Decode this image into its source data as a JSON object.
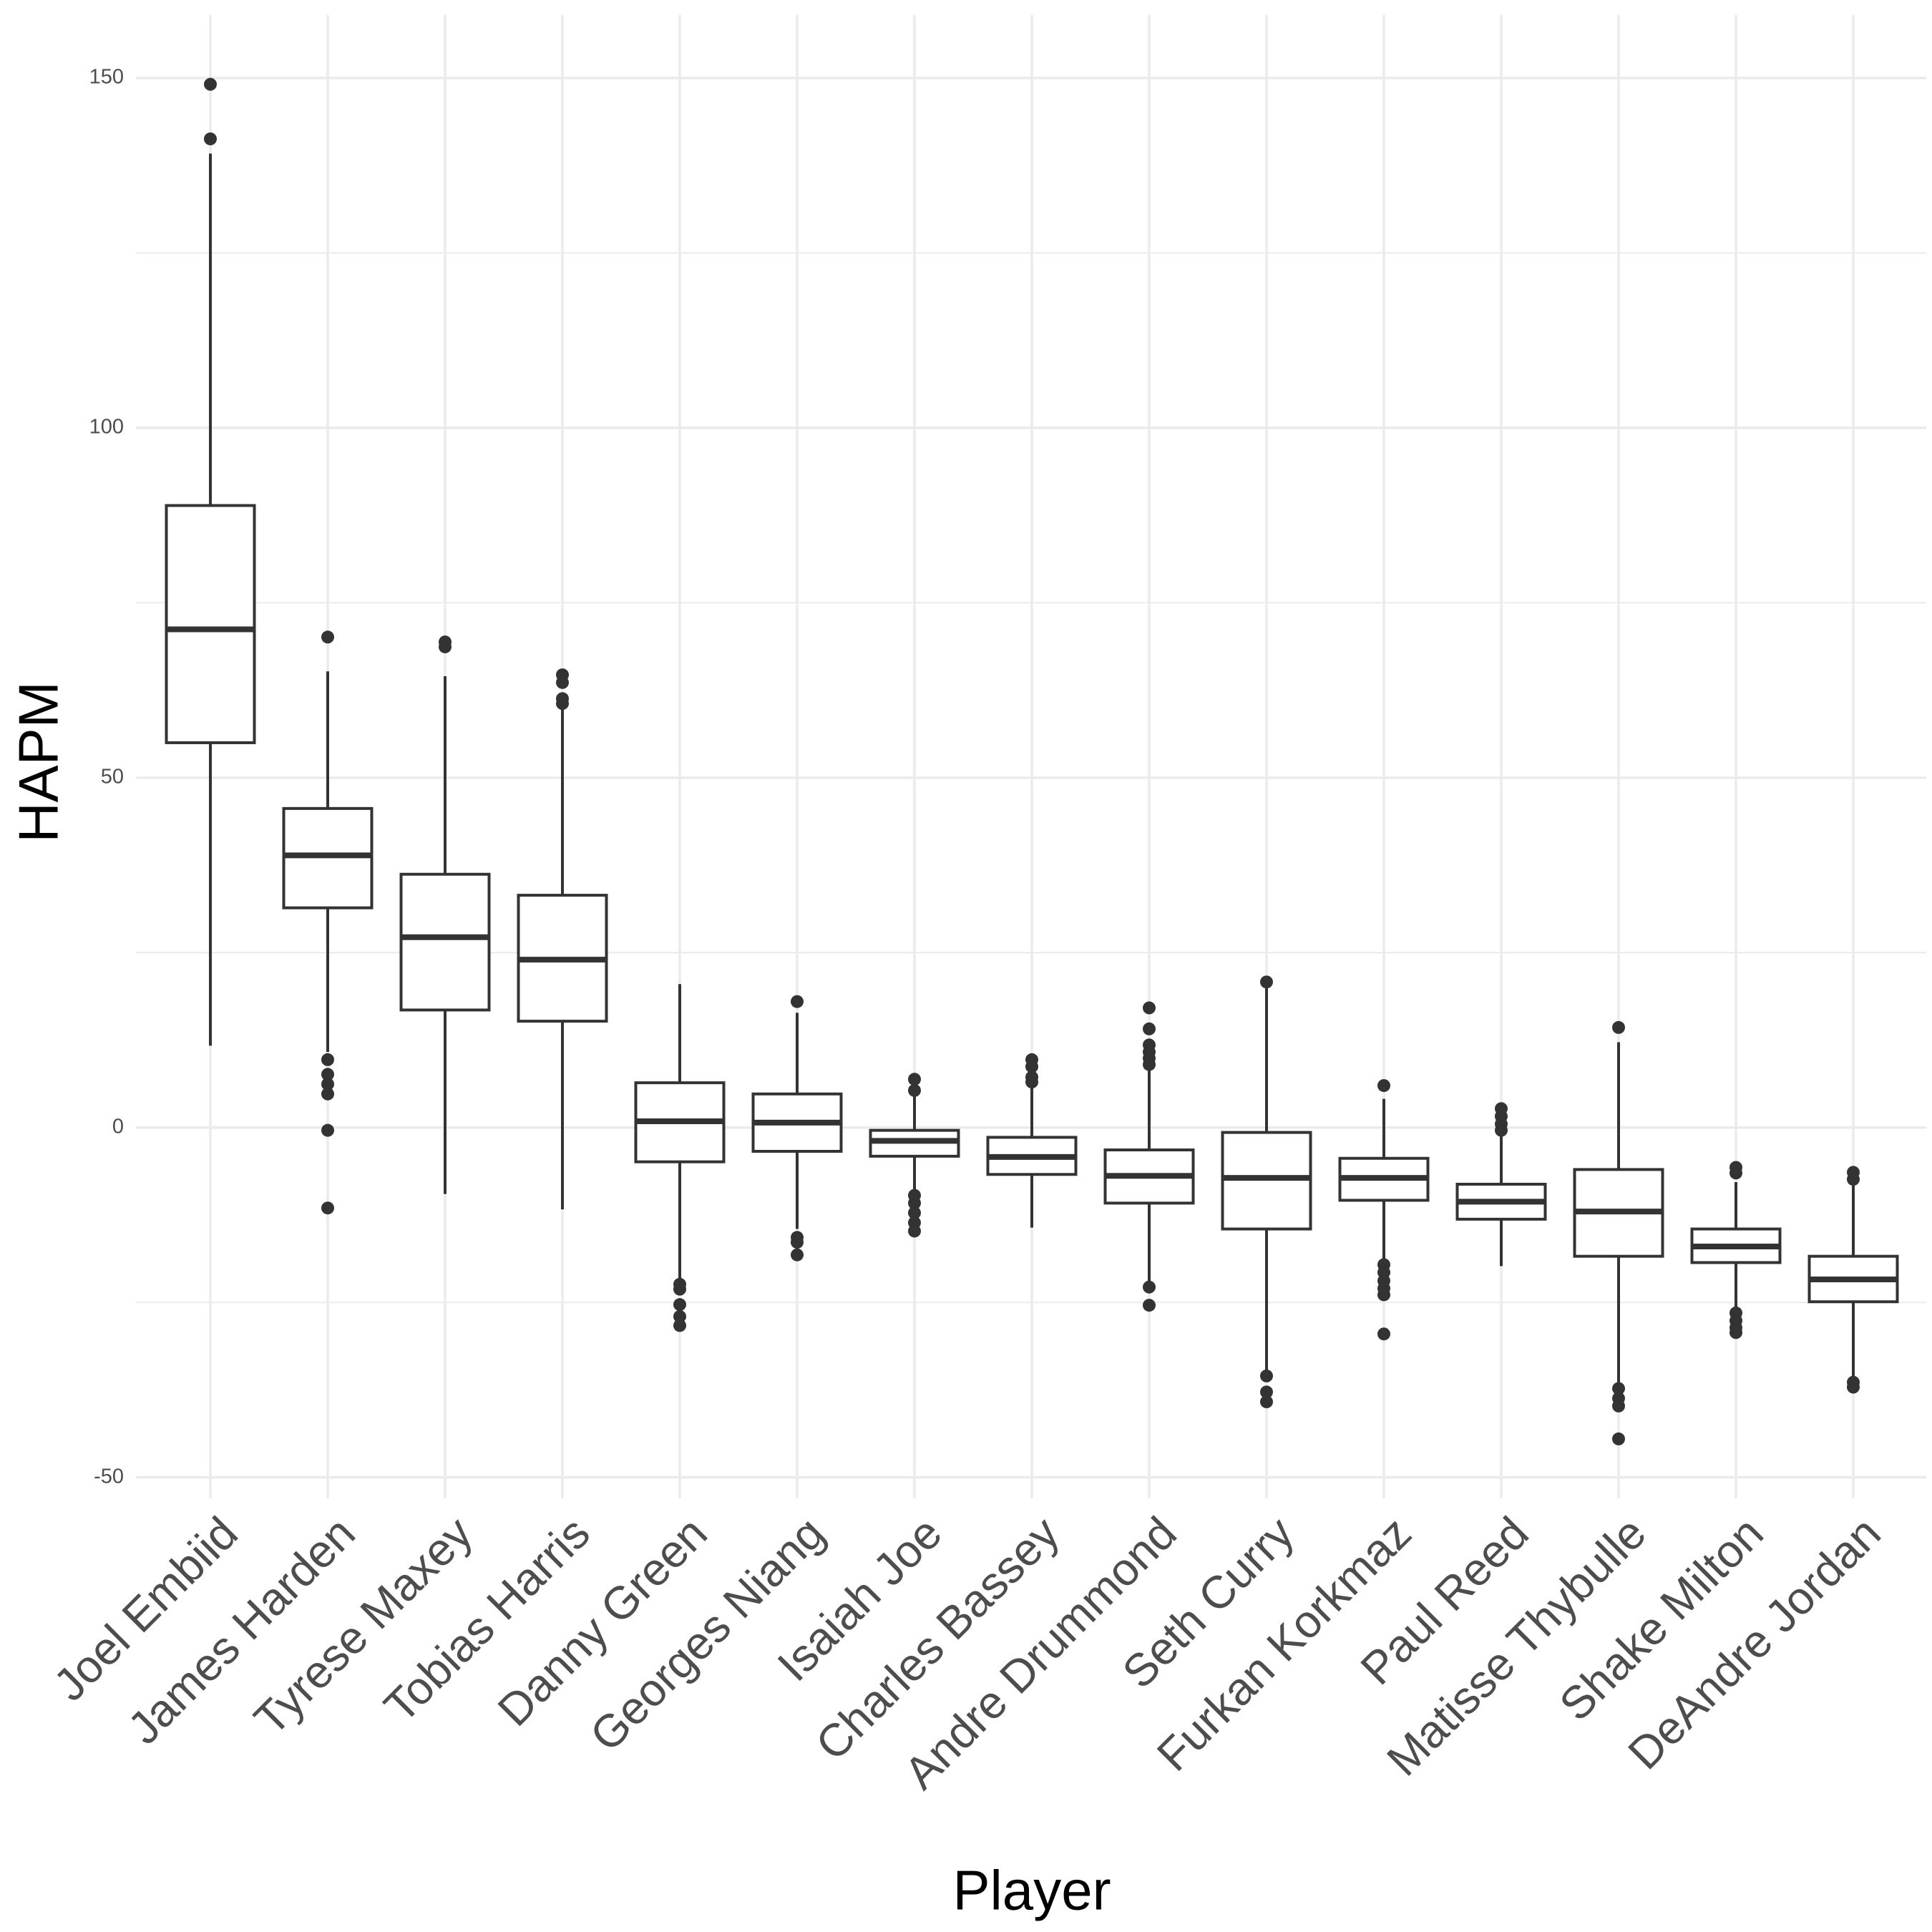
{
  "chart_data": {
    "type": "box",
    "x_label": "Player",
    "y_label": "HAPM",
    "categories": [
      "Joel Embiid",
      "James Harden",
      "Tyrese Maxey",
      "Tobias Harris",
      "Danny Green",
      "Georges Niang",
      "Isaiah Joe",
      "Charles Bassey",
      "Andre Drummond",
      "Seth Curry",
      "Furkan Korkmaz",
      "Paul Reed",
      "Matisse Thybulle",
      "Shake Milton",
      "DeAndre Jordan"
    ],
    "boxes": [
      {
        "low": 11.7,
        "q1": 55,
        "median": 71.2,
        "q3": 88.9,
        "high": 139.2,
        "outliers": [
          149.1,
          141.3
        ]
      },
      {
        "low": 10.8,
        "q1": 31.4,
        "median": 38.9,
        "q3": 45.6,
        "high": 65.2,
        "outliers": [
          70.1,
          9.7,
          7.6,
          6.2,
          4.8,
          -0.4,
          -11.5
        ]
      },
      {
        "low": -9.5,
        "q1": 16.8,
        "median": 27.2,
        "q3": 36.2,
        "high": 64.5,
        "outliers": [
          69.4,
          68.7
        ]
      },
      {
        "low": -11.7,
        "q1": 15.2,
        "median": 24,
        "q3": 33.2,
        "high": 60.2,
        "outliers": [
          64.7,
          63.6,
          61.3,
          60.6
        ]
      },
      {
        "low": -21.9,
        "q1": -4.9,
        "median": 0.9,
        "q3": 6.4,
        "high": 20.5,
        "outliers": [
          -22.4,
          -23.1,
          -25.3,
          -27,
          -28.3
        ]
      },
      {
        "low": -14.5,
        "q1": -3.4,
        "median": 0.7,
        "q3": 4.8,
        "high": 16.4,
        "outliers": [
          18,
          -15.7,
          -16.4,
          -18.2
        ]
      },
      {
        "low": -9,
        "q1": -4.1,
        "median": -1.9,
        "q3": -0.4,
        "high": 4.8,
        "outliers": [
          6.9,
          5.3,
          -9.7,
          -10.8,
          -12.2,
          -13.6,
          -14.8
        ]
      },
      {
        "low": -14.3,
        "q1": -6.7,
        "median": -4.2,
        "q3": -1.4,
        "high": 5.8,
        "outliers": [
          9.7,
          8.7,
          7.2,
          6.5
        ]
      },
      {
        "low": -22.1,
        "q1": -10.8,
        "median": -6.9,
        "q3": -3.2,
        "high": 8.7,
        "outliers": [
          17.1,
          14.1,
          11.8,
          10.8,
          9.9,
          9,
          -22.8,
          -25.4
        ]
      },
      {
        "low": -35.2,
        "q1": -14.5,
        "median": -7.2,
        "q3": -0.7,
        "high": 20.1,
        "outliers": [
          20.8,
          -35.5,
          -37.8,
          -39.2
        ]
      },
      {
        "low": -18.9,
        "q1": -10.4,
        "median": -7.2,
        "q3": -4.4,
        "high": 4.1,
        "outliers": [
          6,
          -19.6,
          -20.7,
          -21.9,
          -23,
          -23.9,
          -29.5
        ]
      },
      {
        "low": -19.8,
        "q1": -13.1,
        "median": -10.6,
        "q3": -8.1,
        "high": -1.2,
        "outliers": [
          2.7,
          1.6,
          0.5,
          -0.4
        ]
      },
      {
        "low": -36.6,
        "q1": -18.4,
        "median": -12,
        "q3": -6,
        "high": 12.2,
        "outliers": [
          14.3,
          -37.3,
          -38.7,
          -39.8,
          -44.5
        ]
      },
      {
        "low": -25.8,
        "q1": -19.3,
        "median": -17,
        "q3": -14.5,
        "high": -7.8,
        "outliers": [
          -5.7,
          -6.5,
          -26.5,
          -27.6,
          -28.6,
          -29.3
        ]
      },
      {
        "low": -35.9,
        "q1": -24.9,
        "median": -21.7,
        "q3": -18.4,
        "high": -8,
        "outliers": [
          -6.4,
          -7.4,
          -36.4,
          -37.1
        ]
      }
    ],
    "color": "#333333",
    "ylim": [
      -53,
      159
    ],
    "yticks": [
      -50,
      0,
      50,
      100,
      150
    ],
    "minor_yticks": [
      -25,
      25,
      75,
      125
    ],
    "grid": true
  }
}
